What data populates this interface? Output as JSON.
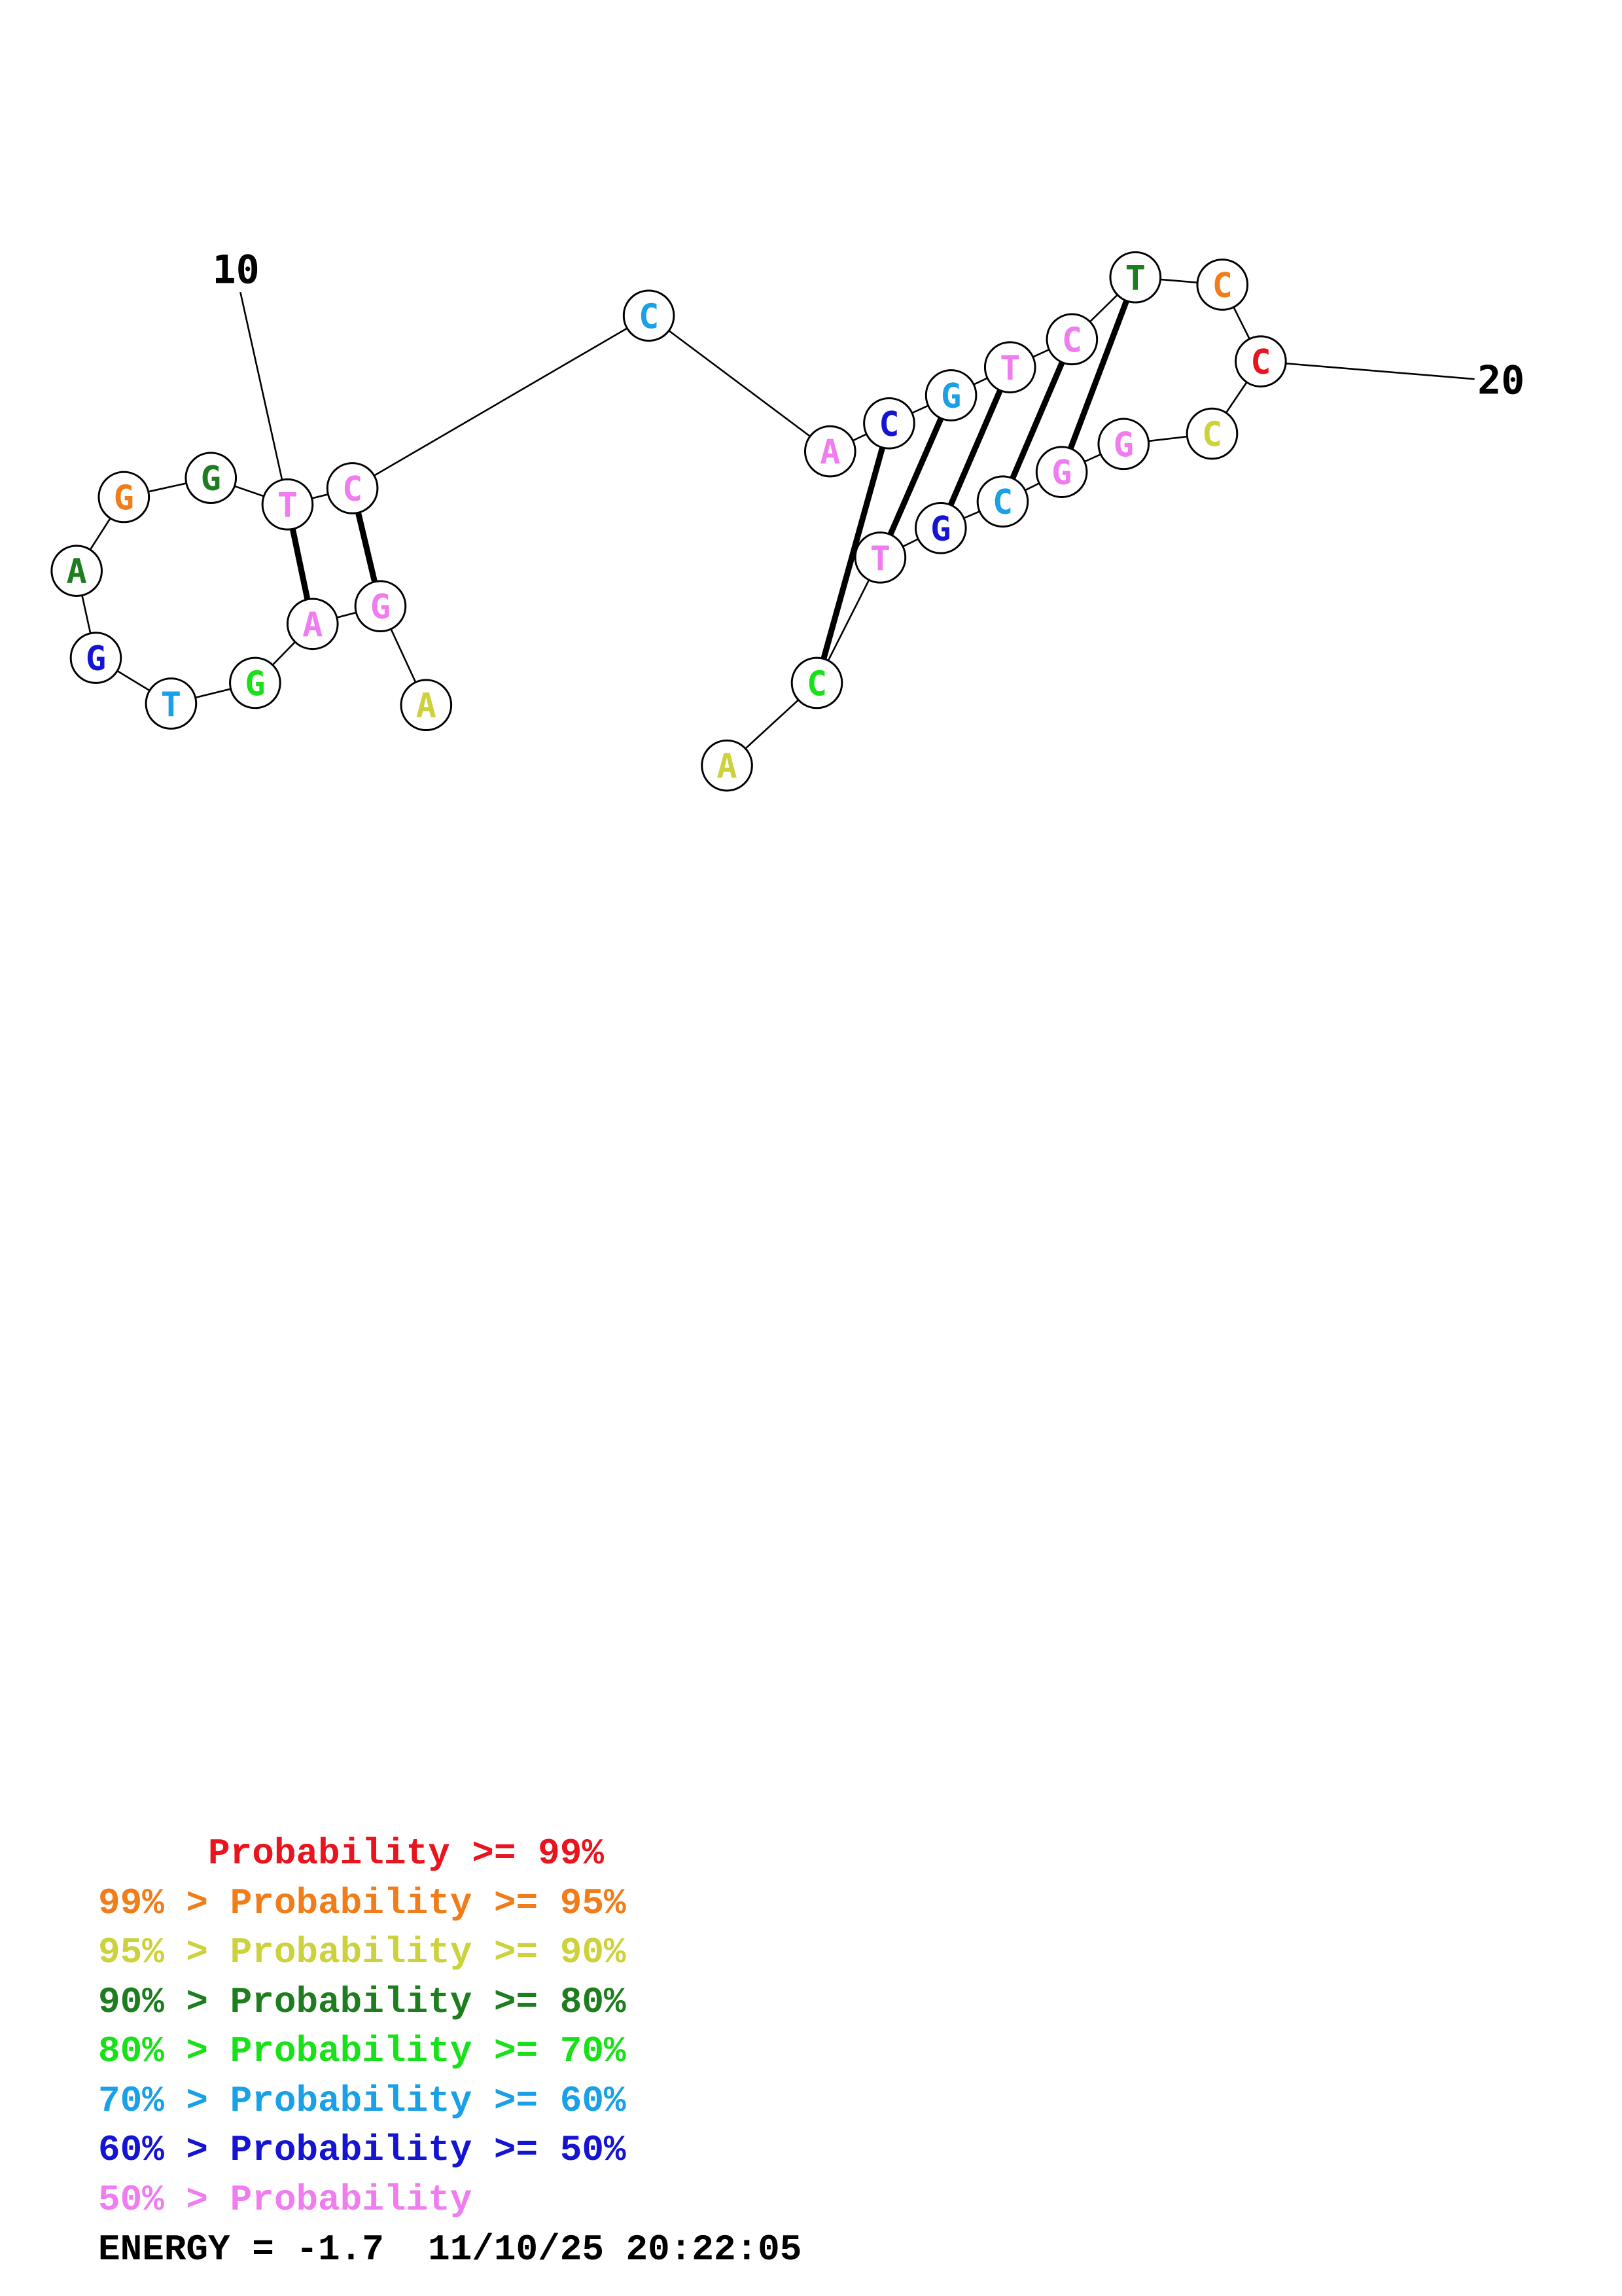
{
  "palette": {
    "red": "#e8141e",
    "orange": "#f07d19",
    "yellow": "#cdd23c",
    "darkgreen": "#1e7d1e",
    "green": "#19e119",
    "cyan": "#19a0e6",
    "blue": "#1414d2",
    "pink": "#f07df0"
  },
  "nucleotides": [
    {
      "base": "A",
      "color": "yellow"
    },
    {
      "base": "G",
      "color": "pink"
    },
    {
      "base": "A",
      "color": "pink"
    },
    {
      "base": "G",
      "color": "green"
    },
    {
      "base": "T",
      "color": "cyan"
    },
    {
      "base": "G",
      "color": "blue"
    },
    {
      "base": "A",
      "color": "darkgreen"
    },
    {
      "base": "G",
      "color": "orange"
    },
    {
      "base": "G",
      "color": "darkgreen"
    },
    {
      "base": "T",
      "color": "pink"
    },
    {
      "base": "C",
      "color": "pink"
    },
    {
      "base": "C",
      "color": "cyan"
    },
    {
      "base": "A",
      "color": "pink"
    },
    {
      "base": "C",
      "color": "blue"
    },
    {
      "base": "G",
      "color": "cyan"
    },
    {
      "base": "T",
      "color": "pink"
    },
    {
      "base": "C",
      "color": "pink"
    },
    {
      "base": "T",
      "color": "darkgreen"
    },
    {
      "base": "C",
      "color": "orange"
    },
    {
      "base": "C",
      "color": "red"
    },
    {
      "base": "C",
      "color": "yellow"
    },
    {
      "base": "G",
      "color": "pink"
    },
    {
      "base": "G",
      "color": "pink"
    },
    {
      "base": "C",
      "color": "cyan"
    },
    {
      "base": "G",
      "color": "blue"
    },
    {
      "base": "T",
      "color": "pink"
    },
    {
      "base": "C",
      "color": "green"
    },
    {
      "base": "A",
      "color": "yellow"
    }
  ],
  "pairs": [
    [
      2,
      9
    ],
    [
      1,
      10
    ],
    [
      13,
      26
    ],
    [
      14,
      25
    ],
    [
      15,
      24
    ],
    [
      16,
      23
    ],
    [
      17,
      22
    ]
  ],
  "markers": [
    {
      "label": "10",
      "index": 9
    },
    {
      "label": "20",
      "index": 19
    }
  ],
  "legend": [
    {
      "text": "     Probability >= 99%",
      "color": "red"
    },
    {
      "text": "99% > Probability >= 95%",
      "color": "orange"
    },
    {
      "text": "95% > Probability >= 90%",
      "color": "yellow"
    },
    {
      "text": "90% > Probability >= 80%",
      "color": "darkgreen"
    },
    {
      "text": "80% > Probability >= 70%",
      "color": "green"
    },
    {
      "text": "70% > Probability >= 60%",
      "color": "cyan"
    },
    {
      "text": "60% > Probability >= 50%",
      "color": "blue"
    },
    {
      "text": "50% > Probability",
      "color": "pink"
    }
  ],
  "energy": "ENERGY = -1.7  11/10/25 20:22:05"
}
